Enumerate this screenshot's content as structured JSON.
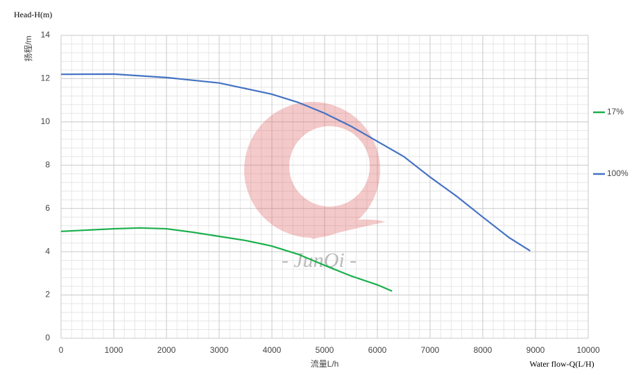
{
  "chart_data": {
    "type": "line",
    "y_label_top": "Head-H(m)",
    "y_label": "扬程/m",
    "x_label": "流量L/h",
    "x_label_right": "Water flow-Q(L/H)",
    "watermark": "- JunQi -",
    "xlim": [
      0,
      10000
    ],
    "xticks": [
      0,
      1000,
      2000,
      3000,
      4000,
      5000,
      6000,
      7000,
      8000,
      9000,
      10000
    ],
    "ylim": [
      0,
      14
    ],
    "yticks": [
      0,
      2,
      4,
      6,
      8,
      10,
      12,
      14
    ],
    "grid": true,
    "legend_position": "right",
    "series": [
      {
        "name": "17%",
        "color": "#1aaf4b",
        "x": [
          0,
          500,
          1000,
          1500,
          2000,
          2500,
          3000,
          3500,
          4000,
          4500,
          5000,
          5500,
          6000,
          6280
        ],
        "values": [
          4.94,
          5.0,
          5.06,
          5.1,
          5.06,
          4.9,
          4.71,
          4.52,
          4.26,
          3.88,
          3.37,
          2.88,
          2.47,
          2.18
        ]
      },
      {
        "name": "100%",
        "color": "#4472c4",
        "x": [
          0,
          1000,
          2000,
          3000,
          4000,
          4500,
          5000,
          5500,
          6000,
          6500,
          7000,
          7500,
          8000,
          8500,
          8900
        ],
        "values": [
          12.2,
          12.21,
          12.05,
          11.8,
          11.28,
          10.9,
          10.4,
          9.8,
          9.1,
          8.4,
          7.45,
          6.57,
          5.6,
          4.65,
          4.04
        ]
      }
    ]
  }
}
